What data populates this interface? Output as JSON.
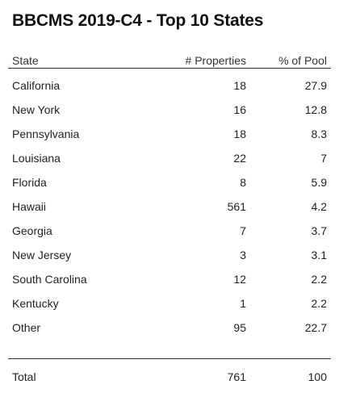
{
  "title": "BBCMS 2019-C4 - Top 10 States",
  "columns": {
    "state": "State",
    "properties": "# Properties",
    "pool": "% of Pool"
  },
  "rows": [
    {
      "state": "California",
      "properties": "18",
      "pool": "27.9"
    },
    {
      "state": "New York",
      "properties": "16",
      "pool": "12.8"
    },
    {
      "state": "Pennsylvania",
      "properties": "18",
      "pool": "8.3"
    },
    {
      "state": "Louisiana",
      "properties": "22",
      "pool": "7"
    },
    {
      "state": "Florida",
      "properties": "8",
      "pool": "5.9"
    },
    {
      "state": "Hawaii",
      "properties": "561",
      "pool": "4.2"
    },
    {
      "state": "Georgia",
      "properties": "7",
      "pool": "3.7"
    },
    {
      "state": "New Jersey",
      "properties": "3",
      "pool": "3.1"
    },
    {
      "state": "South Carolina",
      "properties": "12",
      "pool": "2.2"
    },
    {
      "state": "Kentucky",
      "properties": "1",
      "pool": "2.2"
    },
    {
      "state": "Other",
      "properties": "95",
      "pool": "22.7"
    }
  ],
  "total": {
    "label": "Total",
    "properties": "761",
    "pool": "100"
  }
}
